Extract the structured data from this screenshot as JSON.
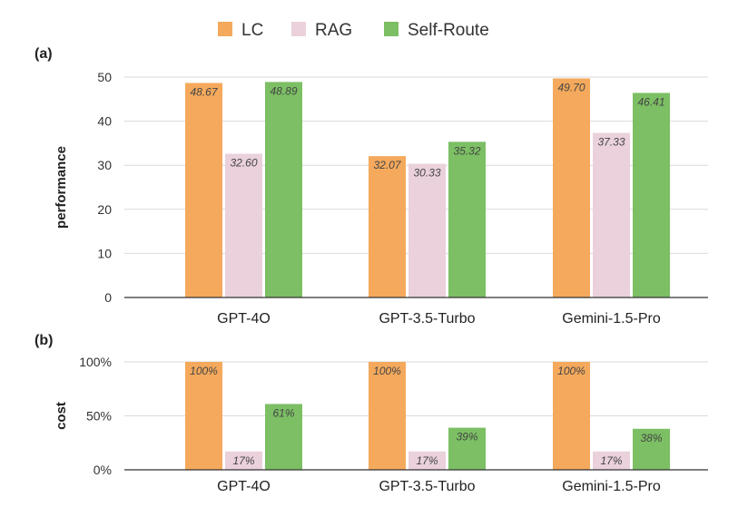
{
  "legend": [
    {
      "name": "LC",
      "color": "#F4A95C"
    },
    {
      "name": "RAG",
      "color": "#EAD1DC"
    },
    {
      "name": "Self-Route",
      "color": "#7CBF64"
    }
  ],
  "chart_data": [
    {
      "type": "bar",
      "panel_label": "(a)",
      "ylabel": "performance",
      "categories": [
        "GPT-4O",
        "GPT-3.5-Turbo",
        "Gemini-1.5-Pro"
      ],
      "ylim": [
        0,
        50
      ],
      "yticks": [
        "0",
        "10",
        "20",
        "30",
        "40",
        "50"
      ],
      "grid": true,
      "legend_position": "top",
      "series": [
        {
          "name": "LC",
          "values": [
            48.67,
            32.07,
            49.7
          ],
          "labels": [
            "48.67",
            "32.07",
            "49.70"
          ]
        },
        {
          "name": "RAG",
          "values": [
            32.6,
            30.33,
            37.33
          ],
          "labels": [
            "32.60",
            "30.33",
            "37.33"
          ]
        },
        {
          "name": "Self-Route",
          "values": [
            48.89,
            35.32,
            46.41
          ],
          "labels": [
            "48.89",
            "35.32",
            "46.41"
          ]
        }
      ]
    },
    {
      "type": "bar",
      "panel_label": "(b)",
      "ylabel": "cost",
      "categories": [
        "GPT-4O",
        "GPT-3.5-Turbo",
        "Gemini-1.5-Pro"
      ],
      "ylim": [
        0,
        100
      ],
      "yticks": [
        "0%",
        "50%",
        "100%"
      ],
      "grid": true,
      "series": [
        {
          "name": "LC",
          "values": [
            100,
            100,
            100
          ],
          "labels": [
            "100%",
            "100%",
            "100%"
          ]
        },
        {
          "name": "RAG",
          "values": [
            17,
            17,
            17
          ],
          "labels": [
            "17%",
            "17%",
            "17%"
          ]
        },
        {
          "name": "Self-Route",
          "values": [
            61,
            39,
            38
          ],
          "labels": [
            "61%",
            "39%",
            "38%"
          ]
        }
      ]
    }
  ]
}
